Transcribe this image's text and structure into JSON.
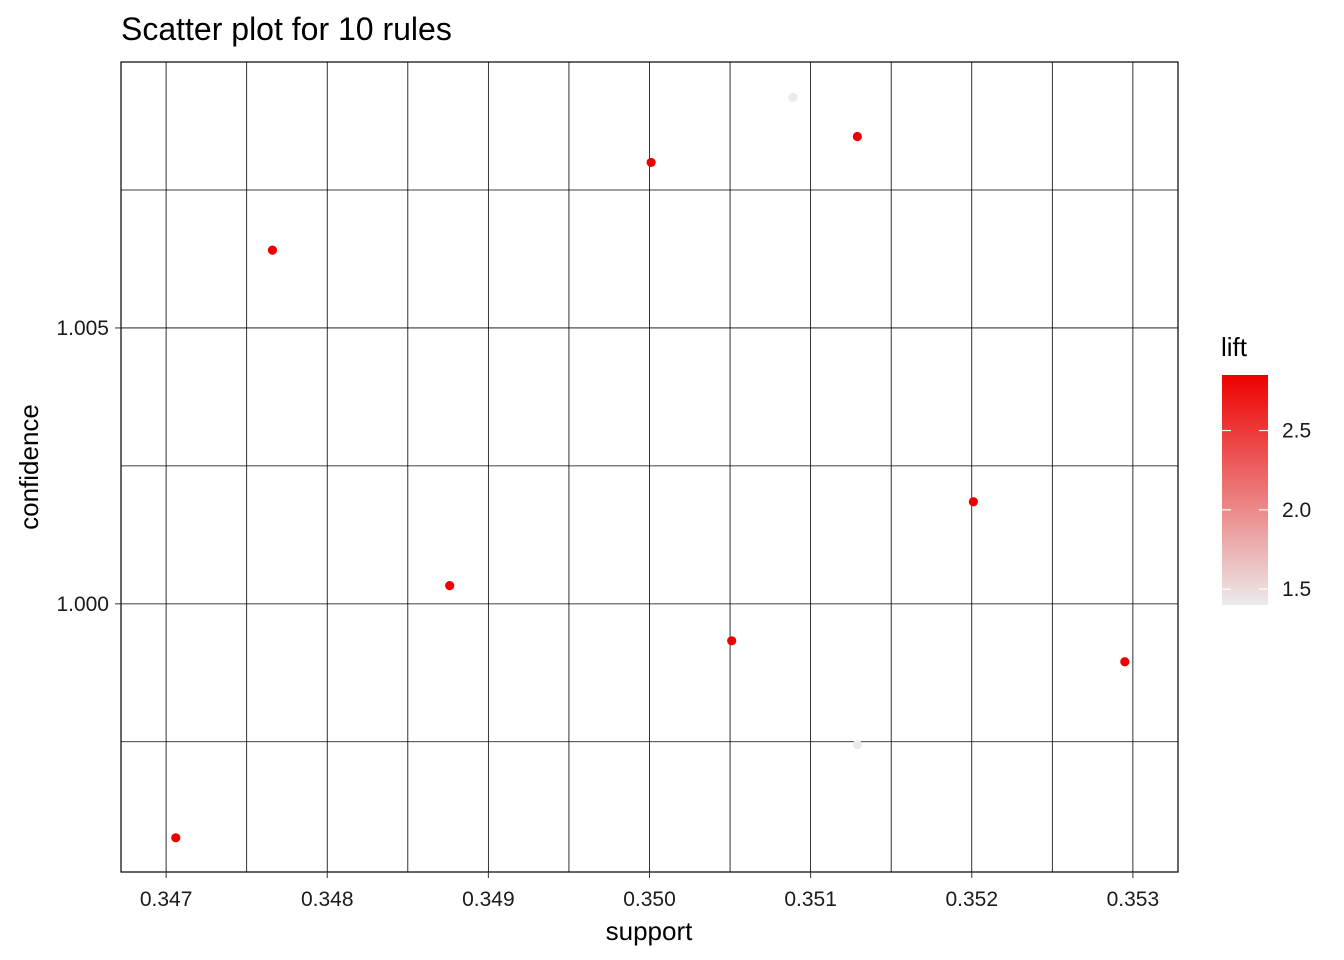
{
  "chart_data": {
    "type": "scatter",
    "title": "Scatter plot for 10 rules",
    "xlabel": "support",
    "ylabel": "confidence",
    "xlim": [
      0.34672,
      0.35328
    ],
    "ylim": [
      0.99514,
      1.00982
    ],
    "x_ticks": [
      {
        "value": 0.347,
        "label": "0.347"
      },
      {
        "value": 0.348,
        "label": "0.348"
      },
      {
        "value": 0.349,
        "label": "0.349"
      },
      {
        "value": 0.35,
        "label": "0.350"
      },
      {
        "value": 0.351,
        "label": "0.351"
      },
      {
        "value": 0.352,
        "label": "0.352"
      },
      {
        "value": 0.353,
        "label": "0.353"
      }
    ],
    "x_minor_ticks": [
      0.3475,
      0.3485,
      0.3495,
      0.3505,
      0.3515,
      0.3525
    ],
    "y_ticks": [
      {
        "value": 1.0,
        "label": "1.000"
      },
      {
        "value": 1.005,
        "label": "1.005"
      }
    ],
    "y_minor_ticks": [
      0.9975,
      1.0025,
      1.0075
    ],
    "grid": true,
    "color_scale": {
      "name": "lift",
      "min": 1.4,
      "max": 2.85,
      "low_color": "#ebebeb",
      "high_color": "#ee0000",
      "ticks": [
        {
          "value": 1.5,
          "label": "1.5"
        },
        {
          "value": 2.0,
          "label": "2.0"
        },
        {
          "value": 2.5,
          "label": "2.5"
        }
      ]
    },
    "legend_position": "right",
    "points": [
      {
        "support": 0.34706,
        "confidence": 0.99576,
        "lift": 2.85
      },
      {
        "support": 0.34766,
        "confidence": 1.00641,
        "lift": 2.85
      },
      {
        "support": 0.34876,
        "confidence": 1.00033,
        "lift": 2.85
      },
      {
        "support": 0.35001,
        "confidence": 1.008,
        "lift": 2.85
      },
      {
        "support": 0.35051,
        "confidence": 0.99933,
        "lift": 2.85
      },
      {
        "support": 0.35089,
        "confidence": 1.00918,
        "lift": 1.4
      },
      {
        "support": 0.35129,
        "confidence": 1.00847,
        "lift": 2.85
      },
      {
        "support": 0.35129,
        "confidence": 0.99745,
        "lift": 1.4
      },
      {
        "support": 0.35201,
        "confidence": 1.00185,
        "lift": 2.85
      },
      {
        "support": 0.35295,
        "confidence": 0.99895,
        "lift": 2.85
      }
    ]
  }
}
